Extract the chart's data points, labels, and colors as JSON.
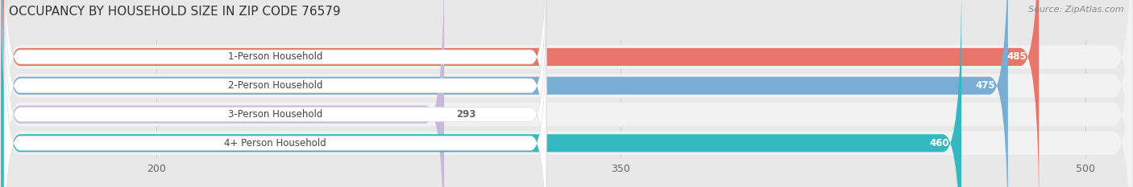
{
  "title": "OCCUPANCY BY HOUSEHOLD SIZE IN ZIP CODE 76579",
  "source": "Source: ZipAtlas.com",
  "categories": [
    "1-Person Household",
    "2-Person Household",
    "3-Person Household",
    "4+ Person Household"
  ],
  "values": [
    485,
    475,
    293,
    460
  ],
  "bar_colors": [
    "#E8756A",
    "#7AADD4",
    "#C9B8D8",
    "#36B8C0"
  ],
  "xlim_min": 150,
  "xlim_max": 515,
  "xticks": [
    200,
    350,
    500
  ],
  "background_color": "#E8E8E8",
  "bar_bg_color": "#F2F2F2",
  "label_bg_color": "#FFFFFF",
  "value_label_color_inside": "#FFFFFF",
  "value_label_color_outside": "#666666",
  "title_fontsize": 11,
  "source_fontsize": 8,
  "bar_height": 0.62,
  "row_sep_color": "#CCCCCC",
  "figsize": [
    14.06,
    2.33
  ],
  "dpi": 100
}
